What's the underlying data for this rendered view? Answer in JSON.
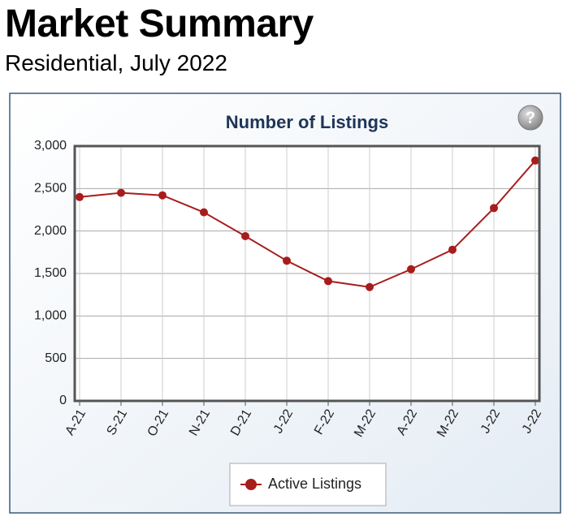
{
  "header": {
    "title": "Market Summary",
    "subtitle": "Residential, July 2022"
  },
  "help": "?",
  "chart_data": {
    "type": "line",
    "title": "Number of Listings",
    "categories": [
      "A-21",
      "S-21",
      "O-21",
      "N-21",
      "D-21",
      "J-22",
      "F-22",
      "M-22",
      "A-22",
      "M-22",
      "J-22",
      "J-22"
    ],
    "series": [
      {
        "name": "Active Listings",
        "color": "#a81c1c",
        "values": [
          2400,
          2450,
          2420,
          2220,
          1940,
          1650,
          1410,
          1340,
          1550,
          1780,
          2270,
          2830
        ]
      }
    ],
    "ylim": [
      0,
      3000
    ],
    "yticks": [
      0,
      500,
      {
        "value": 1000,
        "label": "1,000"
      },
      {
        "value": 1500,
        "label": "1,500"
      },
      {
        "value": 2000,
        "label": "2,000"
      },
      {
        "value": 2500,
        "label": "2,500"
      },
      {
        "value": 3000,
        "label": "3,000"
      }
    ],
    "grid": true
  }
}
